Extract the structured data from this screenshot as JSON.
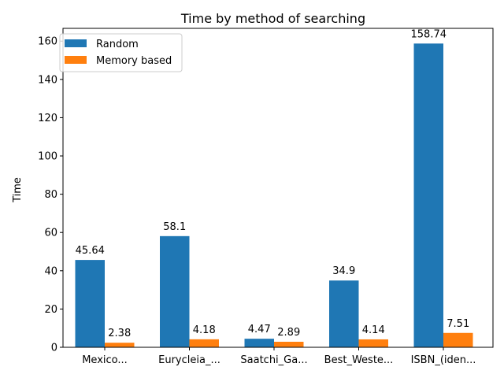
{
  "chart_data": {
    "type": "bar",
    "title": "Time by method of searching",
    "xlabel": "",
    "ylabel": "Time",
    "categories": [
      "Mexico...",
      "Eurycleia_...",
      "Saatchi_Ga...",
      "Best_Weste...",
      "ISBN_(iden..."
    ],
    "series": [
      {
        "name": "Random",
        "values": [
          45.64,
          58.1,
          4.47,
          34.9,
          158.74
        ],
        "labels": [
          "45.64",
          "58.1",
          "4.47",
          "34.9",
          "158.74"
        ],
        "color": "#1f77b4"
      },
      {
        "name": "Memory based",
        "values": [
          2.38,
          4.18,
          2.89,
          4.14,
          7.51
        ],
        "labels": [
          "2.38",
          "4.18",
          "2.89",
          "4.14",
          "7.51"
        ],
        "color": "#ff7f0e"
      }
    ],
    "ylim": [
      0,
      166.68
    ],
    "yticks": [
      0,
      20,
      40,
      60,
      80,
      100,
      120,
      140,
      160
    ],
    "ytick_labels": [
      "0",
      "20",
      "40",
      "60",
      "80",
      "100",
      "120",
      "140",
      "160"
    ],
    "grid": false,
    "legend_position": "top-left"
  }
}
